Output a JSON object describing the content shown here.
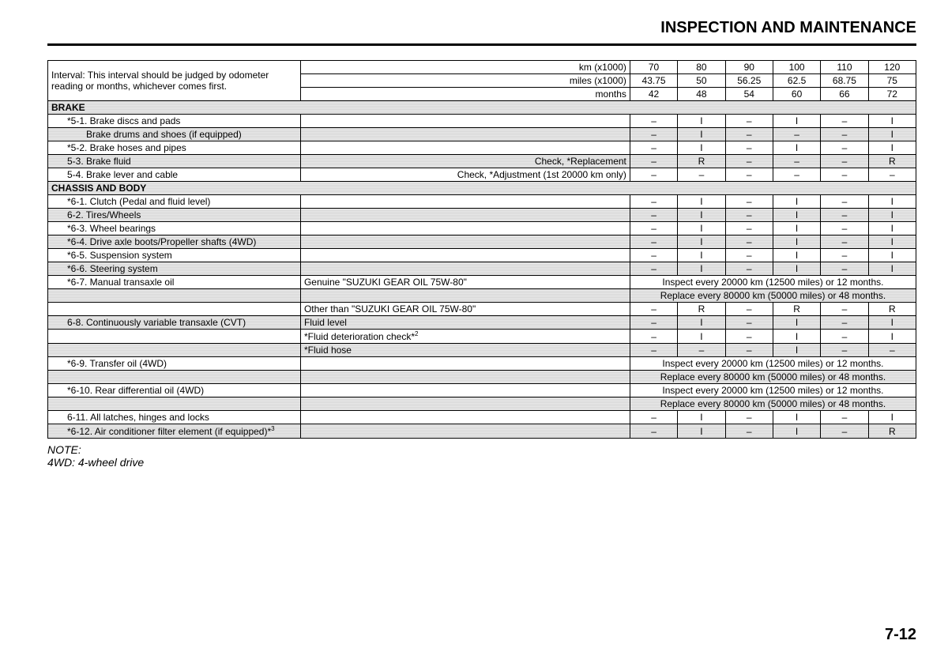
{
  "page_title": "INSPECTION AND MAINTENANCE",
  "page_number": "7-12",
  "note_label": "NOTE:",
  "note_body": "4WD: 4-wheel drive",
  "interval_note": "Interval: This interval should be judged by odometer reading or months, whichever comes first.",
  "header": {
    "km_label": "km (x1000)",
    "miles_label": "miles (x1000)",
    "months_label": "months",
    "km": [
      "70",
      "80",
      "90",
      "100",
      "110",
      "120"
    ],
    "miles": [
      "43.75",
      "50",
      "56.25",
      "62.5",
      "68.75",
      "75"
    ],
    "months": [
      "42",
      "48",
      "54",
      "60",
      "66",
      "72"
    ]
  },
  "section_brake": "BRAKE",
  "section_chassis": "CHASSIS AND BODY",
  "rows": {
    "r51": {
      "label": "*5-1. Brake discs and pads",
      "c": [
        "–",
        "I",
        "–",
        "I",
        "–",
        "I"
      ]
    },
    "r51b": {
      "label": "Brake drums and shoes (if equipped)",
      "c": [
        "–",
        "I",
        "–",
        "–",
        "–",
        "I"
      ]
    },
    "r52": {
      "label": "*5-2. Brake hoses and pipes",
      "c": [
        "–",
        "I",
        "–",
        "I",
        "–",
        "I"
      ]
    },
    "r53": {
      "label": "5-3. Brake fluid",
      "desc": "Check, *Replacement",
      "c": [
        "–",
        "R",
        "–",
        "–",
        "–",
        "R"
      ]
    },
    "r54": {
      "label": "5-4. Brake lever and cable",
      "desc": "Check, *Adjustment (1st 20000 km only)",
      "c": [
        "–",
        "–",
        "–",
        "–",
        "–",
        "–"
      ]
    },
    "r61": {
      "label": "*6-1. Clutch (Pedal and fluid level)",
      "c": [
        "–",
        "I",
        "–",
        "I",
        "–",
        "I"
      ]
    },
    "r62": {
      "label": "6-2. Tires/Wheels",
      "c": [
        "–",
        "I",
        "–",
        "I",
        "–",
        "I"
      ]
    },
    "r63": {
      "label": "*6-3. Wheel bearings",
      "c": [
        "–",
        "I",
        "–",
        "I",
        "–",
        "I"
      ]
    },
    "r64": {
      "label": "*6-4. Drive axle boots/Propeller shafts (4WD)",
      "c": [
        "–",
        "I",
        "–",
        "I",
        "–",
        "I"
      ]
    },
    "r65": {
      "label": "*6-5. Suspension system",
      "c": [
        "–",
        "I",
        "–",
        "I",
        "–",
        "I"
      ]
    },
    "r66": {
      "label": "*6-6. Steering system",
      "c": [
        "–",
        "I",
        "–",
        "I",
        "–",
        "I"
      ]
    },
    "r67": {
      "label": "*6-7. Manual transaxle oil",
      "desc1": "Genuine \"SUZUKI GEAR OIL 75W-80\"",
      "span1": "Inspect every 20000 km (12500 miles) or 12 months.",
      "span2": "Replace every 80000 km (50000 miles) or 48 months."
    },
    "r67b": {
      "desc": "Other than \"SUZUKI GEAR OIL 75W-80\"",
      "c": [
        "–",
        "R",
        "–",
        "R",
        "–",
        "R"
      ]
    },
    "r68": {
      "label": "6-8. Continuously variable transaxle (CVT)",
      "desc": "Fluid level",
      "c": [
        "–",
        "I",
        "–",
        "I",
        "–",
        "I"
      ]
    },
    "r68b": {
      "desc": "*Fluid deterioration check*",
      "sup": "2",
      "c": [
        "–",
        "I",
        "–",
        "I",
        "–",
        "I"
      ]
    },
    "r68c": {
      "desc": "*Fluid hose",
      "c": [
        "–",
        "–",
        "–",
        "I",
        "–",
        "–"
      ]
    },
    "r69": {
      "label": "*6-9. Transfer oil (4WD)",
      "span1": "Inspect every 20000 km (12500 miles) or 12 months.",
      "span2": "Replace every 80000 km (50000 miles) or 48 months."
    },
    "r610": {
      "label": "*6-10. Rear differential oil (4WD)",
      "span1": "Inspect every 20000 km (12500 miles) or 12 months.",
      "span2": "Replace every 80000 km (50000 miles) or 48 months."
    },
    "r611": {
      "label": "6-11. All latches, hinges and locks",
      "c": [
        "–",
        "I",
        "–",
        "I",
        "–",
        "I"
      ]
    },
    "r612": {
      "label": "*6-12. Air conditioner filter element (if equipped)*",
      "sup": "3",
      "c": [
        "–",
        "I",
        "–",
        "I",
        "–",
        "R"
      ]
    }
  },
  "colors": {
    "bg": "#ffffff",
    "text": "#000000",
    "shade": "#dcdcdc"
  }
}
